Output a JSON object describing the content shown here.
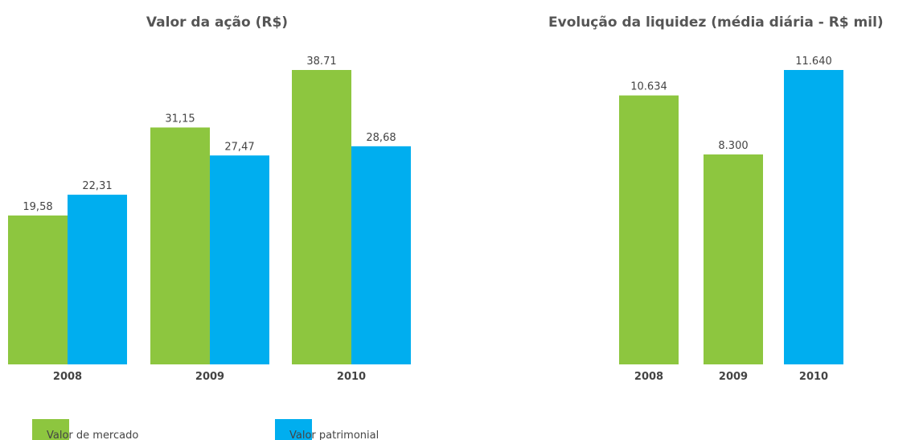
{
  "chart_data": [
    {
      "type": "bar",
      "title": "Valor da ação (R$)",
      "categories": [
        "2008",
        "2009",
        "2010"
      ],
      "series": [
        {
          "name": "Valor de mercado",
          "color": "#8dc63f",
          "values": [
            19.58,
            31.15,
            38.71
          ],
          "value_labels": [
            "19,58",
            "31,15",
            "38.71"
          ]
        },
        {
          "name": "Valor patrimonial",
          "color": "#00aeef",
          "values": [
            22.31,
            27.47,
            28.68
          ],
          "value_labels": [
            "22,31",
            "27,47",
            "28,68"
          ]
        }
      ]
    },
    {
      "type": "bar",
      "title": "Evolução da liquidez (média diária - R$ mil)",
      "categories": [
        "2008",
        "2009",
        "2010"
      ],
      "values": [
        10634,
        8300,
        11640
      ],
      "value_labels": [
        "10.634",
        "8.300",
        "11.640"
      ],
      "colors": [
        "#8dc63f",
        "#8dc63f",
        "#00aeef"
      ]
    }
  ]
}
